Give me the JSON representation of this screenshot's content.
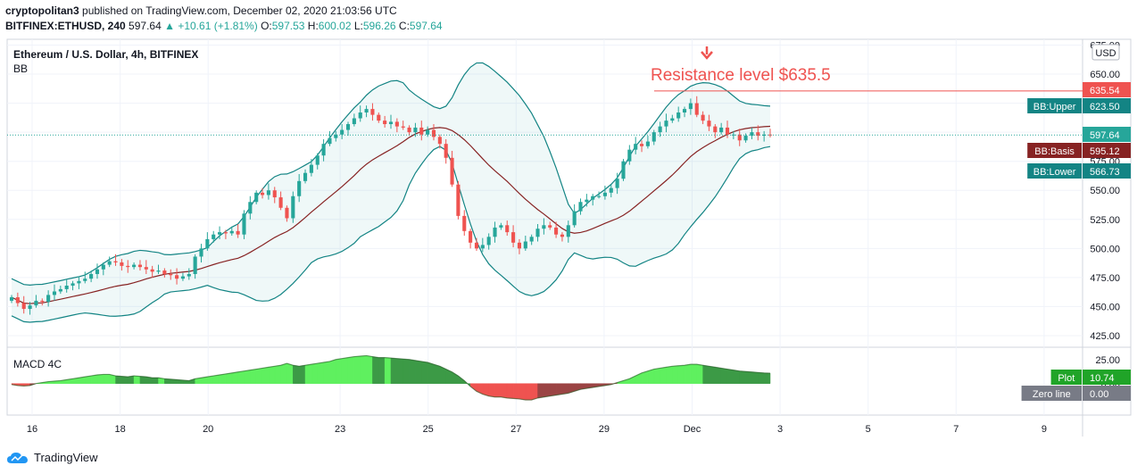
{
  "header": {
    "publisher": "cryptopolitan3",
    "published_text": "published on TradingView.com, December 02, 2020 21:03:56 UTC",
    "symbol": "BITFINEX:ETHUSD, 240",
    "last": "597.64",
    "change_arrow": "▲",
    "change": "+10.61 (+1.81%)",
    "o_label": "O:",
    "o": "597.53",
    "h_label": "H:",
    "h": "600.02",
    "l_label": "L:",
    "l": "596.26",
    "c_label": "C:",
    "c": "597.64"
  },
  "chart_data": {
    "type": "candlestick",
    "title": "Ethereum / U.S. Dollar, 4h, BITFINEX",
    "indicator": "BB",
    "currency": "USD",
    "y_axis": {
      "ticks": [
        "675.00",
        "650.00",
        "625.00",
        "600.00",
        "575.00",
        "550.00",
        "525.00",
        "500.00",
        "475.00",
        "450.00",
        "425.00"
      ],
      "range": [
        415,
        680
      ]
    },
    "x_axis": {
      "ticks": [
        "16",
        "18",
        "20",
        "23",
        "25",
        "27",
        "29",
        "Dec",
        "3",
        "5",
        "7",
        "9"
      ]
    },
    "annotation": {
      "text": "Resistance level $635.5",
      "value": 635.5,
      "color": "#ef5350"
    },
    "last_price": 597.64,
    "price_labels": [
      {
        "name": "",
        "value": "635.54",
        "color": "#ef5350"
      },
      {
        "name": "BB:Upper",
        "value": "623.50",
        "color": "#138484"
      },
      {
        "name": "",
        "value": "597.64",
        "color": "#26a69a"
      },
      {
        "name": "BB:Basis",
        "value": "595.12",
        "color": "#872323"
      },
      {
        "name": "BB:Lower",
        "value": "566.73",
        "color": "#138484"
      }
    ],
    "closes": [
      458,
      453,
      448,
      451,
      455,
      454,
      460,
      463,
      465,
      468,
      470,
      472,
      474,
      478,
      482,
      486,
      489,
      488,
      485,
      484,
      486,
      484,
      482,
      480,
      481,
      478,
      477,
      474,
      476,
      478,
      493,
      500,
      508,
      512,
      514,
      513,
      515,
      512,
      530,
      540,
      548,
      546,
      550,
      544,
      535,
      526,
      545,
      558,
      565,
      572,
      580,
      590,
      595,
      598,
      602,
      607,
      612,
      617,
      620,
      615,
      610,
      607,
      609,
      605,
      604,
      600,
      604,
      598,
      602,
      596,
      590,
      578,
      555,
      528,
      515,
      505,
      500,
      503,
      510,
      518,
      520,
      514,
      505,
      500,
      506,
      510,
      517,
      520,
      518,
      512,
      510,
      520,
      532,
      540,
      542,
      545,
      545,
      548,
      552,
      560,
      575,
      585,
      590,
      588,
      592,
      600,
      605,
      610,
      612,
      617,
      620,
      625,
      615,
      610,
      605,
      600,
      604,
      598,
      598,
      593,
      597,
      600,
      597,
      598,
      597.64
    ],
    "macd": {
      "name": "MACD 4C",
      "axis_ticks": [
        "25.00",
        "0.00"
      ],
      "range": [
        -30,
        35
      ],
      "values": [
        -1,
        -2,
        -2.5,
        -2,
        0,
        1,
        2,
        2.5,
        3,
        4,
        5,
        6,
        7,
        8,
        9,
        9.5,
        9.5,
        8,
        7.5,
        7,
        8,
        7.5,
        7,
        6,
        6,
        5,
        4.5,
        4,
        3.5,
        3,
        5,
        6,
        7,
        8,
        9,
        10,
        11,
        12,
        13,
        14,
        15,
        16,
        17,
        18,
        19,
        21,
        19,
        18,
        19,
        20,
        21,
        22,
        23,
        25,
        26,
        27,
        28,
        28.5,
        29,
        28,
        27,
        27,
        26.5,
        26,
        25.5,
        25,
        24,
        23,
        22,
        20,
        18,
        15,
        12,
        8,
        3,
        -3,
        -8,
        -11,
        -13,
        -14,
        -14,
        -15,
        -15.5,
        -16,
        -17,
        -17,
        -15,
        -14,
        -13,
        -12,
        -11,
        -10,
        -8,
        -6,
        -5,
        -4,
        -3,
        -2,
        -1,
        1,
        3,
        5,
        8,
        11,
        13,
        15,
        16,
        17,
        18,
        18.5,
        19,
        20,
        20,
        19,
        18,
        17,
        16,
        15,
        14,
        13,
        12.5,
        12,
        11.5,
        11,
        10.74
      ],
      "plot": {
        "name": "Plot",
        "value": "10.74",
        "color": "#20a428"
      },
      "zero": {
        "name": "Zero line",
        "value": "0.00",
        "color": "#787b86"
      }
    },
    "bb_period": 20,
    "bb_mult": 2
  },
  "footer": {
    "brand": "TradingView",
    "icon": "tradingview-cloud-icon"
  }
}
